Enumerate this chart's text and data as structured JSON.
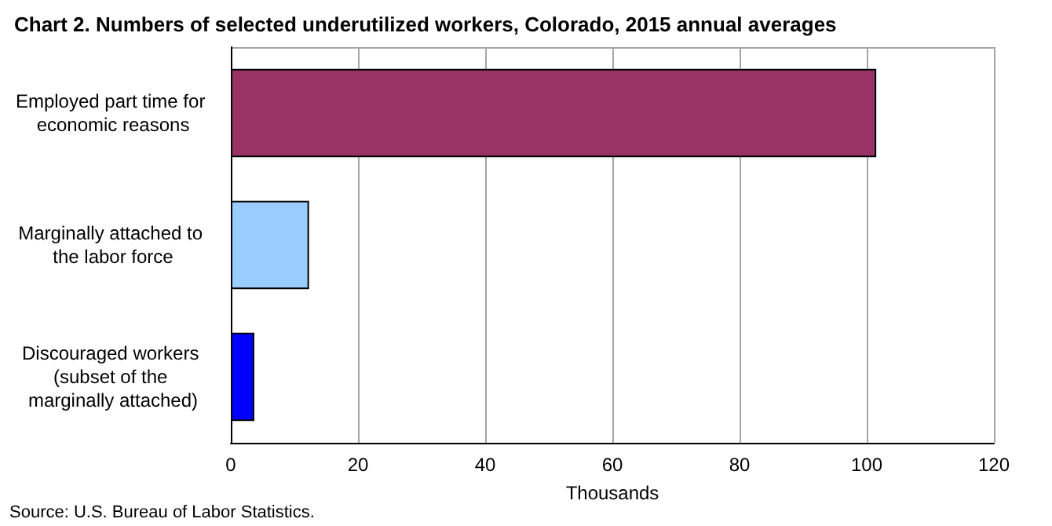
{
  "chart_data": {
    "type": "bar",
    "orientation": "horizontal",
    "title": "Chart 2. Numbers of selected underutilized workers, Colorado, 2015 annual averages",
    "categories": [
      "Employed part time for economic reasons",
      "Marginally attached to the labor force",
      "Discouraged workers (subset of the marginally attached)"
    ],
    "values": [
      101.5,
      12.3,
      3.7
    ],
    "colors": [
      "#993366",
      "#99ccff",
      "#0000ff"
    ],
    "xlabel": "Thousands",
    "xlim": [
      0,
      120
    ],
    "xticks": [
      0,
      20,
      40,
      60,
      80,
      100,
      120
    ],
    "grid": "x",
    "annotations": [
      "Source: U.S. Bureau of Labor Statistics."
    ]
  }
}
